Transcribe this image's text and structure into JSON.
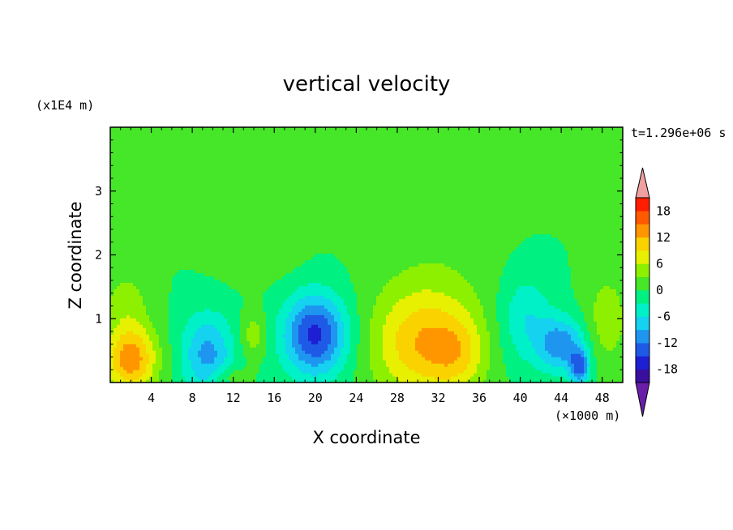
{
  "chart_data": {
    "type": "heatmap",
    "title": "vertical velocity",
    "xlabel": "X coordinate",
    "ylabel": "Z coordinate",
    "x_unit": "(×1000 m)",
    "y_unit": "(x1E4 m)",
    "time_label": "t=1.296e+06 s",
    "xlim": [
      0,
      50
    ],
    "ylim": [
      0,
      4
    ],
    "x_ticks": [
      4,
      8,
      12,
      16,
      20,
      24,
      28,
      32,
      36,
      40,
      44,
      48
    ],
    "y_ticks": [
      1,
      2,
      3
    ],
    "colorbar": {
      "ticks": [
        18,
        12,
        6,
        0,
        -6,
        -12,
        -18
      ],
      "levels": [
        -21,
        -18,
        -15,
        -12,
        -9,
        -6,
        -3,
        0,
        3,
        6,
        9,
        12,
        15,
        18,
        21
      ],
      "colors": [
        "#6a1ea8",
        "#3a0fa0",
        "#1e1ed2",
        "#1e5ae6",
        "#1e96f0",
        "#14d2f0",
        "#00f0c8",
        "#00f082",
        "#46e628",
        "#8cf000",
        "#e6f000",
        "#fad200",
        "#ff9600",
        "#ff5a00",
        "#ff1e00",
        "#f0a0a0"
      ],
      "extend": "both"
    },
    "background_level": 0,
    "features": [
      {
        "x": 2,
        "z": 0.38,
        "sx": 1.8,
        "sz": 0.38,
        "value": 14
      },
      {
        "x": 1.5,
        "z": 1.3,
        "sx": 1.6,
        "sz": 0.35,
        "value": 4
      },
      {
        "x": 9.5,
        "z": 0.45,
        "sx": 1.8,
        "sz": 0.45,
        "value": -10
      },
      {
        "x": 11.5,
        "z": 0.1,
        "sx": 1.2,
        "sz": 0.12,
        "value": 4
      },
      {
        "x": 14,
        "z": 0.75,
        "sx": 0.9,
        "sz": 0.25,
        "value": 5
      },
      {
        "x": 14.5,
        "z": 2.0,
        "sx": 2.8,
        "sz": 0.3,
        "value": 2
      },
      {
        "x": 20,
        "z": 0.75,
        "sx": 2.2,
        "sz": 0.45,
        "value": -16
      },
      {
        "x": 30.5,
        "z": 0.6,
        "sx": 3.5,
        "sz": 0.6,
        "value": 11
      },
      {
        "x": 34,
        "z": 0.45,
        "sx": 1.8,
        "sz": 0.4,
        "value": 5
      },
      {
        "x": 32,
        "z": 1.6,
        "sx": 4.5,
        "sz": 0.9,
        "value": 2
      },
      {
        "x": 40.5,
        "z": 1.0,
        "sx": 1.8,
        "sz": 0.5,
        "value": -6
      },
      {
        "x": 44,
        "z": 0.6,
        "sx": 1.6,
        "sz": 0.3,
        "value": -11
      },
      {
        "x": 45.8,
        "z": 0.25,
        "sx": 0.7,
        "sz": 0.2,
        "value": -12
      },
      {
        "x": 48.5,
        "z": 1.0,
        "sx": 1.5,
        "sz": 0.5,
        "value": 5
      },
      {
        "x": 6,
        "z": 2.5,
        "sx": 3.0,
        "sz": 0.2,
        "value": 2
      },
      {
        "x": 20,
        "z": 3.0,
        "sx": 6.0,
        "sz": 0.1,
        "value": 1.5
      }
    ]
  }
}
